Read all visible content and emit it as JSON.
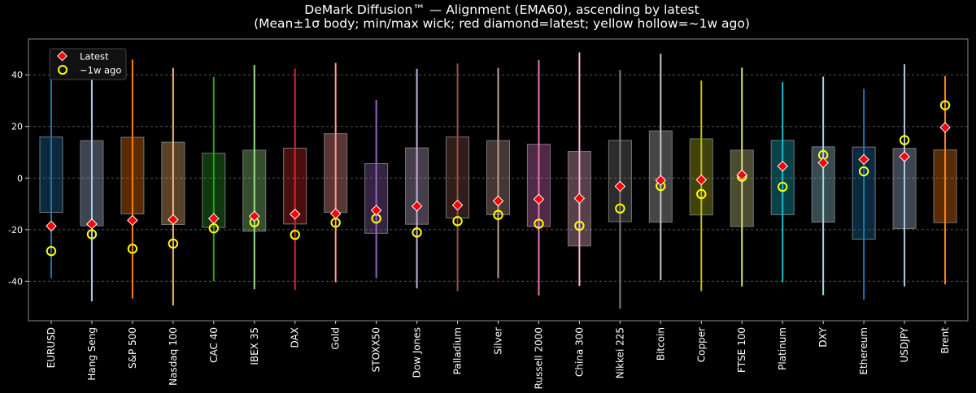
{
  "chart_data": {
    "type": "box",
    "title": "DeMark Diffusion™ — Alignment (EMA60), ascending by latest",
    "subtitle": "(Mean±1σ body; min/max wick; red diamond=latest; yellow hollow=~1w ago)",
    "xlabel": "",
    "ylabel": "",
    "ylim": [
      -55.3,
      53.9
    ],
    "yticks": [
      -40,
      -20,
      0,
      20,
      40
    ],
    "grid": "horizontal dashed",
    "legend_position": "top-left",
    "legend": [
      {
        "label": "Latest",
        "marker": "diamond",
        "color": "#ff0000"
      },
      {
        "label": "~1w ago",
        "marker": "hollow-circle",
        "color": "#ffff00"
      }
    ],
    "categories": [
      "EURUSD",
      "Hang Seng",
      "S&P 500",
      "Nasdaq 100",
      "CAC 40",
      "IBEX 35",
      "DAX",
      "Gold",
      "STOXX50",
      "Dow Jones",
      "Palladium",
      "Silver",
      "Russell 2000",
      "China 300",
      "Nikkei 225",
      "Bitcoin",
      "Copper",
      "FTSE 100",
      "Platinum",
      "DXY",
      "Ethereum",
      "USDJPY",
      "Brent"
    ],
    "colors": [
      "#1f77b4",
      "#aec7e8",
      "#ff7f0e",
      "#ffbb78",
      "#2ca02c",
      "#98df8a",
      "#d62728",
      "#ff9896",
      "#9467bd",
      "#c5b0d5",
      "#8c564b",
      "#c49c94",
      "#e377c2",
      "#f7b6d2",
      "#7f7f7f",
      "#c7c7c7",
      "#bcbd22",
      "#dbdb8d",
      "#17becf",
      "#9edae5",
      "#1f77b4",
      "#aec7e8",
      "#ff7f0e"
    ],
    "max": [
      45.1,
      44.8,
      45.9,
      42.7,
      39.2,
      43.8,
      42.4,
      44.6,
      30.3,
      42.3,
      44.4,
      42.7,
      45.7,
      48.7,
      41.9,
      48.2,
      37.8,
      42.8,
      37.2,
      39.3,
      34.6,
      44.1,
      39.6
    ],
    "min": [
      -38.8,
      -47.8,
      -46.7,
      -49.4,
      -39.9,
      -43.1,
      -43.3,
      -40.4,
      -38.8,
      -42.8,
      -43.8,
      -38.8,
      -45.5,
      -41.8,
      -50.6,
      -39.6,
      -43.8,
      -42.0,
      -40.4,
      -45.4,
      -47.1,
      -42.0,
      -41.2
    ],
    "body_top": [
      15.9,
      14.5,
      15.8,
      13.9,
      9.6,
      10.8,
      11.6,
      17.2,
      5.6,
      11.7,
      15.9,
      14.5,
      13.1,
      10.3,
      14.6,
      18.3,
      15.2,
      10.8,
      14.6,
      12.1,
      12.0,
      11.5,
      10.9
    ],
    "body_bottom": [
      -13.3,
      -18.5,
      -13.9,
      -18.0,
      -19.1,
      -20.6,
      -17.8,
      -13.3,
      -21.4,
      -17.9,
      -15.5,
      -14.2,
      -18.8,
      -26.3,
      -16.9,
      -17.1,
      -14.3,
      -18.8,
      -14.2,
      -17.1,
      -23.7,
      -19.6,
      -17.3
    ],
    "latest": [
      -18.6,
      -17.8,
      -16.4,
      -16.1,
      -15.7,
      -14.8,
      -14.0,
      -13.8,
      -12.5,
      -10.9,
      -10.5,
      -8.9,
      -8.2,
      -7.9,
      -3.2,
      -0.9,
      -0.7,
      1.2,
      4.6,
      5.9,
      7.2,
      8.3,
      19.6
    ],
    "week_ago": [
      -28.3,
      -21.8,
      -27.4,
      -25.4,
      -19.5,
      -17.1,
      -22.0,
      -17.3,
      -15.7,
      -21.1,
      -16.7,
      -14.3,
      -17.7,
      -18.5,
      -11.8,
      -3.1,
      -6.2,
      0.5,
      -3.4,
      8.9,
      2.6,
      14.7,
      28.2
    ]
  }
}
